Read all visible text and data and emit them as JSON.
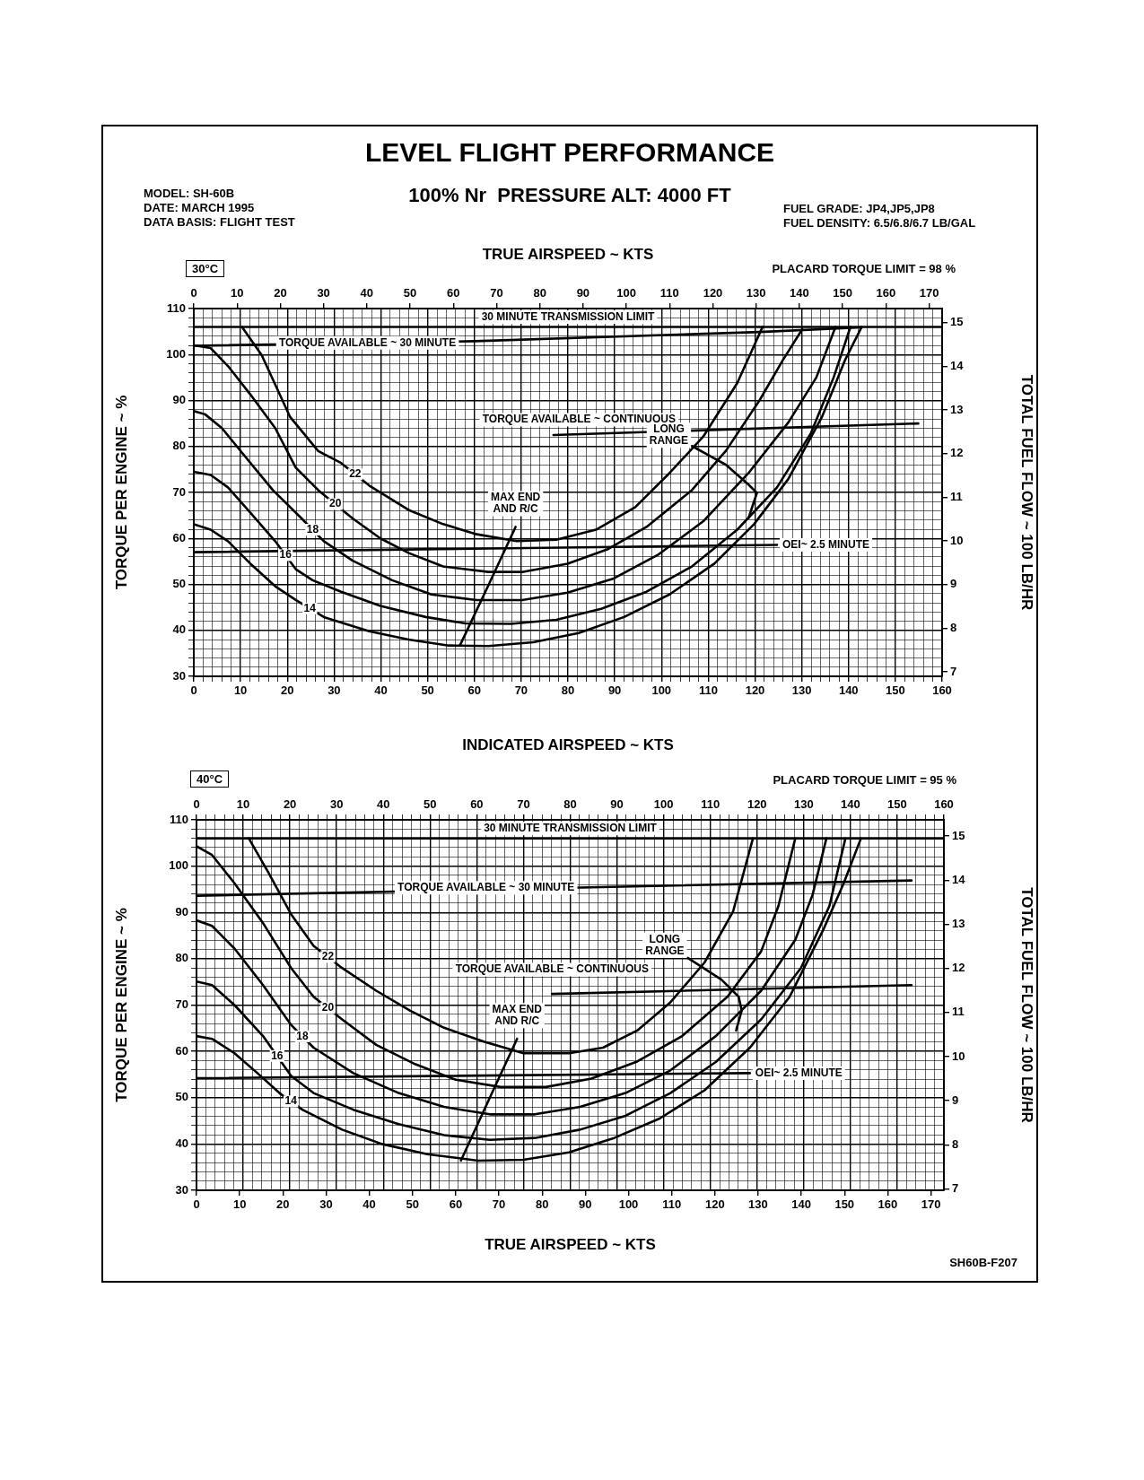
{
  "chart_data": [
    {
      "type": "line",
      "title": "LEVEL FLIGHT PERFORMANCE",
      "subtitle": "100% Nr  PRESSURE ALT: 4000 FT",
      "annotations": [
        "MODEL: SH-60B",
        "DATE: MARCH 1995",
        "DATA BASIS: FLIGHT TEST",
        "FUEL GRADE: JP4,JP5,JP8",
        "FUEL DENSITY: 6.5/6.8/6.7 LB/GAL",
        "30°C",
        "PLACARD TORQUE LIMIT = 98 %"
      ],
      "xlabel": "INDICATED AIRSPEED ~ KTS",
      "x2label": "TRUE AIRSPEED ~ KTS",
      "ylabel": "TORQUE PER ENGINE ~ %",
      "y2label": "TOTAL FUEL FLOW ~ 100 LB/HR",
      "xlim": [
        0,
        160
      ],
      "xticks": [
        0,
        {
          "value": 2,
          "label": null
        },
        {
          "value": 4,
          "label": null
        },
        {
          "value": 6,
          "label": null
        },
        {
          "value": 8,
          "label": null
        },
        10,
        {
          "value": 12,
          "label": null
        },
        {
          "value": 14,
          "label": null
        },
        {
          "value": 16,
          "label": null
        },
        {
          "value": 18,
          "label": null
        },
        20,
        {
          "value": 22,
          "label": null
        },
        {
          "value": 24,
          "label": null
        },
        {
          "value": 26,
          "label": null
        },
        {
          "value": 28,
          "label": null
        },
        30,
        {
          "value": 32,
          "label": null
        },
        {
          "value": 34,
          "label": null
        },
        {
          "value": 36,
          "label": null
        },
        {
          "value": 38,
          "label": null
        },
        40,
        {
          "value": 42,
          "label": null
        },
        {
          "value": 44,
          "label": null
        },
        {
          "value": 46,
          "label": null
        },
        {
          "value": 48,
          "label": null
        },
        50,
        {
          "value": 52,
          "label": null
        },
        {
          "value": 54,
          "label": null
        },
        {
          "value": 56,
          "label": null
        },
        {
          "value": 58,
          "label": null
        },
        60,
        {
          "value": 62,
          "label": null
        },
        {
          "value": 64,
          "label": null
        },
        {
          "value": 66,
          "label": null
        },
        {
          "value": 68,
          "label": null
        },
        70,
        {
          "value": 72,
          "label": null
        },
        {
          "value": 74,
          "label": null
        },
        {
          "value": 76,
          "label": null
        },
        {
          "value": 78,
          "label": null
        },
        80,
        {
          "value": 82,
          "label": null
        },
        {
          "value": 84,
          "label": null
        },
        {
          "value": 86,
          "label": null
        },
        {
          "value": 88,
          "label": null
        },
        90,
        {
          "value": 92,
          "label": null
        },
        {
          "value": 94,
          "label": null
        },
        {
          "value": 96,
          "label": null
        },
        {
          "value": 98,
          "label": null
        },
        100,
        {
          "value": 102,
          "label": null
        },
        {
          "value": 104,
          "label": null
        },
        {
          "value": 106,
          "label": null
        },
        {
          "value": 108,
          "label": null
        },
        110,
        {
          "value": 112,
          "label": null
        },
        {
          "value": 114,
          "label": null
        },
        {
          "value": 116,
          "label": null
        },
        {
          "value": 118,
          "label": null
        },
        120,
        {
          "value": 122,
          "label": null
        },
        {
          "value": 124,
          "label": null
        },
        {
          "value": 126,
          "label": null
        },
        {
          "value": 128,
          "label": null
        },
        130,
        {
          "value": 132,
          "label": null
        },
        {
          "value": 134,
          "label": null
        },
        {
          "value": 136,
          "label": null
        },
        {
          "value": 138,
          "label": null
        },
        140,
        {
          "value": 142,
          "label": null
        },
        {
          "value": 144,
          "label": null
        },
        {
          "value": 146,
          "label": null
        },
        {
          "value": 148,
          "label": null
        },
        150,
        {
          "value": 152,
          "label": null
        },
        {
          "value": 154,
          "label": null
        },
        {
          "value": 156,
          "label": null
        },
        {
          "value": 158,
          "label": null
        },
        160
      ],
      "x2lim": [
        0,
        173
      ],
      "x2ticks": [
        0,
        10,
        20,
        30,
        40,
        50,
        60,
        70,
        80,
        90,
        100,
        110,
        120,
        130,
        140,
        150,
        160,
        170
      ],
      "ylim": [
        30,
        110
      ],
      "yticks": [
        30,
        {
          "value": 32,
          "label": null
        },
        {
          "value": 34,
          "label": null
        },
        {
          "value": 36,
          "label": null
        },
        {
          "value": 38,
          "label": null
        },
        40,
        {
          "value": 42,
          "label": null
        },
        {
          "value": 44,
          "label": null
        },
        {
          "value": 46,
          "label": null
        },
        {
          "value": 48,
          "label": null
        },
        50,
        {
          "value": 52,
          "label": null
        },
        {
          "value": 54,
          "label": null
        },
        {
          "value": 56,
          "label": null
        },
        {
          "value": 58,
          "label": null
        },
        60,
        {
          "value": 62,
          "label": null
        },
        {
          "value": 64,
          "label": null
        },
        {
          "value": 66,
          "label": null
        },
        {
          "value": 68,
          "label": null
        },
        70,
        {
          "value": 72,
          "label": null
        },
        {
          "value": 74,
          "label": null
        },
        {
          "value": 76,
          "label": null
        },
        {
          "value": 78,
          "label": null
        },
        80,
        {
          "value": 82,
          "label": null
        },
        {
          "value": 84,
          "label": null
        },
        {
          "value": 86,
          "label": null
        },
        {
          "value": 88,
          "label": null
        },
        90,
        {
          "value": 92,
          "label": null
        },
        {
          "value": 94,
          "label": null
        },
        {
          "value": 96,
          "label": null
        },
        {
          "value": 98,
          "label": null
        },
        100,
        {
          "value": 102,
          "label": null
        },
        {
          "value": 104,
          "label": null
        },
        {
          "value": 106,
          "label": null
        },
        {
          "value": 108,
          "label": null
        },
        110
      ],
      "y2lim": [
        6.9,
        15.32
      ],
      "y2ticks": [
        7,
        8,
        9,
        10,
        11,
        12,
        13,
        14,
        15
      ],
      "grid": true,
      "ref_lines": [
        {
          "axis": "y",
          "value": 106,
          "label": "30 MINUTE TRANSMISSION LIMIT",
          "color": "#000000"
        }
      ],
      "series": [
        {
          "name": "22",
          "color": "#000000",
          "x": [
            10.3,
            14.5,
            20.6,
            26.6,
            31.5,
            37.5,
            45.9,
            53.3,
            60.5,
            69,
            77.5,
            86,
            94.4,
            101.7,
            108.9,
            116.2,
            121.6
          ],
          "values": [
            106,
            99.9,
            86.4,
            79,
            76.4,
            71.5,
            66.2,
            63.1,
            60.9,
            59.4,
            59.7,
            61.9,
            66.8,
            74.2,
            82.1,
            93.8,
            106
          ]
        },
        {
          "name": "20",
          "color": "#000000",
          "x": [
            0,
            3.6,
            7.3,
            12.1,
            17.4,
            21.8,
            26.6,
            33.9,
            39.9,
            46,
            53.3,
            63,
            70.2,
            79.9,
            88.4,
            96.8,
            106.5,
            113.8,
            121,
            125.9,
            130.1
          ],
          "values": [
            102,
            101.4,
            97.5,
            91.3,
            84,
            75.4,
            70.5,
            64.4,
            60,
            56.8,
            53.9,
            52.7,
            52.7,
            54.5,
            57.6,
            62.5,
            70.5,
            79.1,
            90.1,
            98.7,
            105.5
          ]
        },
        {
          "name": "18",
          "color": "#000000",
          "x": [
            0,
            2.4,
            6,
            10.9,
            16.9,
            23,
            27.8,
            33.9,
            42.4,
            50.8,
            60.5,
            70.2,
            79.9,
            89.6,
            99.2,
            108.9,
            118.6,
            127.1,
            133.1,
            137.2
          ],
          "values": [
            87.7,
            87,
            84,
            77.9,
            70.5,
            64.4,
            59.4,
            55.2,
            50.9,
            47.8,
            46.6,
            46.6,
            48.2,
            51.2,
            56.4,
            63.7,
            74.2,
            85.2,
            95,
            106
          ]
        },
        {
          "name": "16",
          "color": "#000000",
          "x": [
            0,
            3.6,
            7.3,
            12.1,
            17.4,
            21.8,
            25.4,
            31.5,
            39.9,
            49.6,
            58.1,
            67.8,
            77.5,
            87.1,
            96.8,
            106.5,
            116.2,
            124.7,
            131.9,
            136.8,
            140.4
          ],
          "values": [
            74.5,
            73.8,
            71.1,
            65.6,
            59.4,
            53.3,
            50.9,
            48.4,
            45.3,
            42.9,
            41.5,
            41.4,
            42.3,
            44.7,
            48.4,
            53.9,
            61.9,
            71.1,
            82.8,
            95,
            106
          ]
        },
        {
          "name": "14",
          "color": "#000000",
          "x": [
            0,
            3.6,
            7.3,
            12.1,
            17.4,
            21.8,
            27.8,
            37.5,
            45.9,
            54.5,
            63,
            72.6,
            82.3,
            92,
            101.7,
            111.3,
            119.8,
            127.1,
            134.3,
            139.2,
            142.8
          ],
          "values": [
            63.1,
            61.9,
            59.4,
            54.5,
            49.6,
            46.6,
            42.9,
            39.8,
            38,
            36.7,
            36.6,
            37.4,
            39.4,
            42.9,
            47.8,
            54.5,
            63.1,
            72.9,
            86.4,
            98.7,
            106
          ]
        },
        {
          "name": "TORQUE AVAILABLE ~ 30 MINUTE",
          "color": "#000000",
          "x": [
            0,
            60,
            121,
            142.8
          ],
          "values": [
            101.9,
            102.9,
            104.9,
            105.9
          ]
        },
        {
          "name": "TORQUE AVAILABLE ~ CONTINUOUS",
          "color": "#000000",
          "x": [
            76.9,
            154.9
          ],
          "values": [
            82.5,
            85
          ]
        },
        {
          "name": "OEI~ 2.5 MINUTE",
          "color": "#000000",
          "x": [
            0,
            124.7
          ],
          "values": [
            57,
            58.6
          ]
        },
        {
          "name": "MAX END\nAND R/C",
          "color": "#000000",
          "x": [
            56.9,
            62.9,
            68.8
          ],
          "values": [
            36.7,
            49.6,
            62.5
          ]
        },
        {
          "name": "LONG\nRANGE",
          "color": "#000000",
          "x": [
            106.5,
            113.8,
            118.6,
            120.4,
            118.6
          ],
          "values": [
            80.1,
            76,
            71.7,
            69.9,
            64.4
          ]
        }
      ]
    },
    {
      "type": "line",
      "annotations": [
        "40°C",
        "PLACARD TORQUE LIMIT = 95 %",
        "SH60B-F207"
      ],
      "xlabel": "TRUE AIRSPEED ~ KTS",
      "ylabel": "TORQUE PER ENGINE ~ %",
      "y2label": "TOTAL FUEL FLOW ~ 100 LB/HR",
      "xlim": [
        0,
        173
      ],
      "xticks": [
        0,
        10,
        20,
        30,
        40,
        50,
        60,
        70,
        80,
        90,
        100,
        110,
        120,
        130,
        140,
        150,
        160,
        170
      ],
      "x2lim": [
        0,
        160
      ],
      "x2ticks": [
        0,
        {
          "value": 2,
          "label": null
        },
        {
          "value": 4,
          "label": null
        },
        {
          "value": 6,
          "label": null
        },
        {
          "value": 8,
          "label": null
        },
        10,
        {
          "value": 12,
          "label": null
        },
        {
          "value": 14,
          "label": null
        },
        {
          "value": 16,
          "label": null
        },
        {
          "value": 18,
          "label": null
        },
        20,
        {
          "value": 22,
          "label": null
        },
        {
          "value": 24,
          "label": null
        },
        {
          "value": 26,
          "label": null
        },
        {
          "value": 28,
          "label": null
        },
        30,
        {
          "value": 32,
          "label": null
        },
        {
          "value": 34,
          "label": null
        },
        {
          "value": 36,
          "label": null
        },
        {
          "value": 38,
          "label": null
        },
        40,
        {
          "value": 42,
          "label": null
        },
        {
          "value": 44,
          "label": null
        },
        {
          "value": 46,
          "label": null
        },
        {
          "value": 48,
          "label": null
        },
        50,
        {
          "value": 52,
          "label": null
        },
        {
          "value": 54,
          "label": null
        },
        {
          "value": 56,
          "label": null
        },
        {
          "value": 58,
          "label": null
        },
        60,
        {
          "value": 62,
          "label": null
        },
        {
          "value": 64,
          "label": null
        },
        {
          "value": 66,
          "label": null
        },
        {
          "value": 68,
          "label": null
        },
        70,
        {
          "value": 72,
          "label": null
        },
        {
          "value": 74,
          "label": null
        },
        {
          "value": 76,
          "label": null
        },
        {
          "value": 78,
          "label": null
        },
        80,
        {
          "value": 82,
          "label": null
        },
        {
          "value": 84,
          "label": null
        },
        {
          "value": 86,
          "label": null
        },
        {
          "value": 88,
          "label": null
        },
        90,
        {
          "value": 92,
          "label": null
        },
        {
          "value": 94,
          "label": null
        },
        {
          "value": 96,
          "label": null
        },
        {
          "value": 98,
          "label": null
        },
        100,
        {
          "value": 102,
          "label": null
        },
        {
          "value": 104,
          "label": null
        },
        {
          "value": 106,
          "label": null
        },
        {
          "value": 108,
          "label": null
        },
        110,
        {
          "value": 112,
          "label": null
        },
        {
          "value": 114,
          "label": null
        },
        {
          "value": 116,
          "label": null
        },
        {
          "value": 118,
          "label": null
        },
        120,
        {
          "value": 122,
          "label": null
        },
        {
          "value": 124,
          "label": null
        },
        {
          "value": 126,
          "label": null
        },
        {
          "value": 128,
          "label": null
        },
        130,
        {
          "value": 132,
          "label": null
        },
        {
          "value": 134,
          "label": null
        },
        {
          "value": 136,
          "label": null
        },
        {
          "value": 138,
          "label": null
        },
        140,
        {
          "value": 142,
          "label": null
        },
        {
          "value": 144,
          "label": null
        },
        {
          "value": 146,
          "label": null
        },
        {
          "value": 148,
          "label": null
        },
        150,
        {
          "value": 152,
          "label": null
        },
        {
          "value": 154,
          "label": null
        },
        {
          "value": 156,
          "label": null
        },
        {
          "value": 158,
          "label": null
        },
        160
      ],
      "ylim": [
        30,
        110
      ],
      "yticks": [
        30,
        {
          "value": 32,
          "label": null
        },
        {
          "value": 34,
          "label": null
        },
        {
          "value": 36,
          "label": null
        },
        {
          "value": 38,
          "label": null
        },
        40,
        {
          "value": 42,
          "label": null
        },
        {
          "value": 44,
          "label": null
        },
        {
          "value": 46,
          "label": null
        },
        {
          "value": 48,
          "label": null
        },
        50,
        {
          "value": 52,
          "label": null
        },
        {
          "value": 54,
          "label": null
        },
        {
          "value": 56,
          "label": null
        },
        {
          "value": 58,
          "label": null
        },
        60,
        {
          "value": 62,
          "label": null
        },
        {
          "value": 64,
          "label": null
        },
        {
          "value": 66,
          "label": null
        },
        {
          "value": 68,
          "label": null
        },
        70,
        {
          "value": 72,
          "label": null
        },
        {
          "value": 74,
          "label": null
        },
        {
          "value": 76,
          "label": null
        },
        {
          "value": 78,
          "label": null
        },
        80,
        {
          "value": 82,
          "label": null
        },
        {
          "value": 84,
          "label": null
        },
        {
          "value": 86,
          "label": null
        },
        {
          "value": 88,
          "label": null
        },
        90,
        {
          "value": 92,
          "label": null
        },
        {
          "value": 94,
          "label": null
        },
        {
          "value": 96,
          "label": null
        },
        {
          "value": 98,
          "label": null
        },
        100,
        {
          "value": 102,
          "label": null
        },
        {
          "value": 104,
          "label": null
        },
        {
          "value": 106,
          "label": null
        },
        {
          "value": 108,
          "label": null
        },
        110
      ],
      "y2lim": [
        6.97,
        15.37
      ],
      "y2ticks": [
        7,
        8,
        9,
        10,
        11,
        12,
        13,
        14,
        15
      ],
      "grid": true,
      "ref_lines": [
        {
          "axis": "y",
          "value": 106,
          "label": "30 MINUTE TRANSMISSION LIMIT",
          "color": "#000000"
        }
      ],
      "series": [
        {
          "name": "22",
          "color": "#000000",
          "x": [
            12.1,
            16.6,
            21.9,
            27.1,
            33.7,
            41.6,
            49.4,
            57.3,
            66.5,
            75.7,
            86.2,
            94.1,
            102,
            109.7,
            117.6,
            124.2,
            128.8
          ],
          "values": [
            106,
            98.7,
            89.6,
            82.8,
            78,
            73.1,
            68.8,
            65.1,
            62.1,
            59.6,
            59.6,
            60.8,
            64.5,
            70.6,
            79.2,
            90.2,
            106
          ]
        },
        {
          "name": "20",
          "color": "#000000",
          "x": [
            0,
            3.6,
            8.8,
            15.4,
            21.9,
            27.1,
            33.7,
            41.6,
            50.7,
            59.9,
            70.4,
            80.9,
            91.4,
            102,
            112.4,
            122.9,
            130.7,
            134.7,
            138.6
          ],
          "values": [
            104.3,
            102.4,
            96.3,
            87.7,
            78,
            71.8,
            66.9,
            61.4,
            57.2,
            53.9,
            52.3,
            52.3,
            54.1,
            57.8,
            63.3,
            71.8,
            81.6,
            91.4,
            106
          ]
        },
        {
          "name": "18",
          "color": "#000000",
          "x": [
            0,
            3.6,
            8.8,
            15.4,
            21.9,
            27.1,
            36.3,
            46.8,
            57.3,
            67.9,
            78.3,
            88.8,
            99.3,
            109.7,
            120.2,
            130.7,
            138.6,
            142.6,
            145.8
          ],
          "values": [
            88.3,
            87.1,
            82.2,
            74.3,
            65.7,
            60.8,
            55.3,
            51,
            48,
            46.4,
            46.4,
            48,
            51,
            55.9,
            63.3,
            73.1,
            84.1,
            93.8,
            106
          ]
        },
        {
          "name": "16",
          "color": "#000000",
          "x": [
            0,
            3.6,
            8.8,
            15.4,
            21.9,
            27.1,
            36.3,
            46.8,
            57.3,
            67.9,
            78.3,
            88.8,
            99.3,
            109.7,
            120.2,
            130.7,
            139.9,
            146.5,
            150.2
          ],
          "values": [
            75.1,
            74.3,
            70,
            63.3,
            54.7,
            51,
            47.4,
            44.3,
            41.9,
            40.9,
            41.3,
            43.1,
            46.1,
            51,
            57.7,
            66.9,
            78,
            91.4,
            106
          ]
        },
        {
          "name": "14",
          "color": "#000000",
          "x": [
            0,
            3.6,
            8.8,
            14.1,
            19.2,
            24.5,
            33.7,
            42.9,
            53.4,
            65.2,
            75.7,
            86.2,
            96.7,
            107.2,
            117.6,
            128.1,
            137.3,
            145.2,
            149.8,
            153.8
          ],
          "values": [
            63.3,
            62.7,
            59.6,
            55.3,
            51,
            47.4,
            43.1,
            40,
            37.8,
            36.4,
            36.6,
            38.2,
            41.3,
            45.5,
            51.6,
            60.8,
            71.8,
            86.5,
            96.3,
            106
          ]
        },
        {
          "name": "TORQUE AVAILABLE ~ 30 MINUTE",
          "color": "#000000",
          "x": [
            0,
            165.5
          ],
          "values": [
            93.6,
            96.9
          ]
        },
        {
          "name": "TORQUE AVAILABLE ~ CONTINUOUS",
          "color": "#000000",
          "x": [
            82.3,
            165.5
          ],
          "values": [
            72.4,
            74.3
          ]
        },
        {
          "name": "OEI~ 2.5 MINUTE",
          "color": "#000000",
          "x": [
            0,
            128.1
          ],
          "values": [
            54.2,
            55.3
          ]
        },
        {
          "name": "MAX END\nAND R/C",
          "color": "#000000",
          "x": [
            61.2,
            67.7,
            74.2
          ],
          "values": [
            36.4,
            49.6,
            62.7
          ]
        },
        {
          "name": "LONG\nRANGE",
          "color": "#000000",
          "x": [
            113.7,
            121.5,
            125.5,
            126.2,
            124.9
          ],
          "values": [
            80.2,
            75.5,
            71.8,
            68.8,
            64.5
          ]
        }
      ]
    }
  ]
}
